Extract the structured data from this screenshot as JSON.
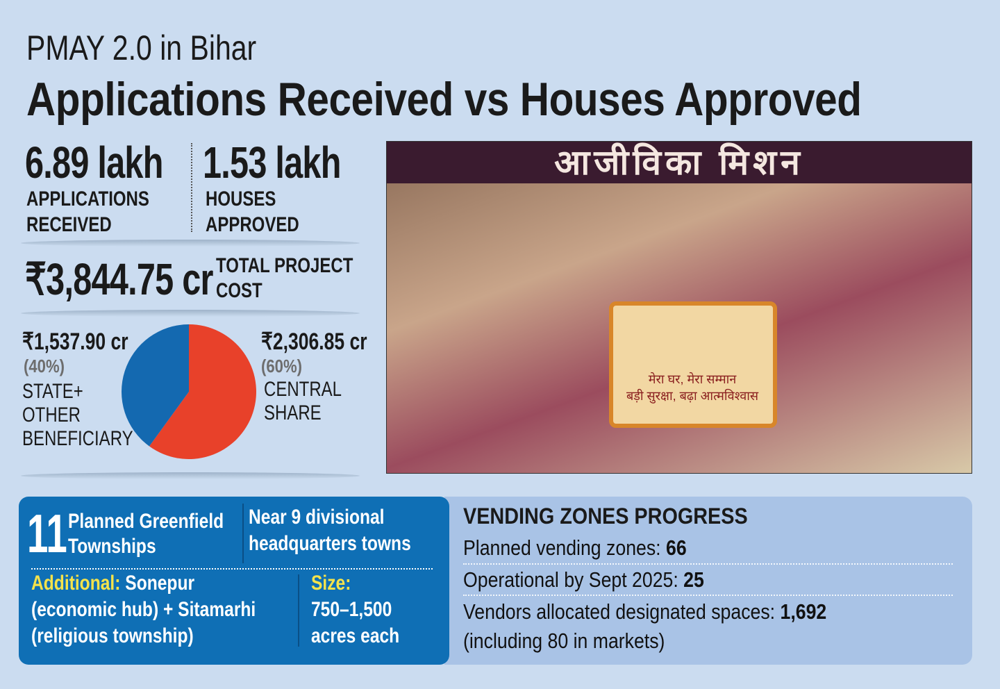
{
  "header": {
    "kicker": "PMAY 2.0 in  Bihar",
    "headline": "Applications Received vs Houses Approved"
  },
  "stats": {
    "applications_value": "6.89 lakh",
    "applications_label_1": "APPLICATIONS",
    "applications_label_2": "RECEIVED",
    "houses_value": "1.53 lakh",
    "houses_label_1": "HOUSES",
    "houses_label_2": "APPROVED",
    "cost_value": "₹3,844.75 cr",
    "cost_label_1": "TOTAL PROJECT",
    "cost_label_2": "COST"
  },
  "colors": {
    "state": "#1469b0",
    "central": "#e8412a",
    "background": "#cbdcf0",
    "box_blue": "#0f6fb5",
    "box_light": "#a9c3e6"
  },
  "chart_data": {
    "type": "pie",
    "title": "",
    "slices": [
      {
        "name": "STATE+\nOTHER\nBENEFICIARY",
        "value": 1537.9,
        "value_label": "₹1,537.90 cr",
        "percent_label": "(40%)",
        "color": "#1469b0"
      },
      {
        "name": "CENTRAL\nSHARE",
        "value": 2306.85,
        "value_label": "₹2,306.85 cr",
        "percent_label": "(60%)",
        "color": "#e8412a"
      }
    ]
  },
  "photo": {
    "banner_text": "आजीविका मिशन",
    "sign_line_1": "मेरा घर, मेरा सम्मान",
    "sign_line_2": "बड़ी सुरक्षा, बढ़ा आत्मविश्वास"
  },
  "townships": {
    "count": "11",
    "label_1": "Planned Greenfield",
    "label_2": "Townships",
    "near_1": "Near 9 divisional",
    "near_2": "headquarters towns",
    "additional_key": "Additional:",
    "additional_1": " Sonepur",
    "additional_2": "(economic hub) + Sitamarhi",
    "additional_3": "(religious township)",
    "size_key": "Size:",
    "size_1": "750–1,500",
    "size_2": "acres each"
  },
  "vending": {
    "title": "VENDING ZONES PROGRESS",
    "planned_label": "Planned vending zones: ",
    "planned_value": "66",
    "operational_label": "Operational by Sept 2025: ",
    "operational_value": "25",
    "vendors_label": "Vendors allocated designated spaces: ",
    "vendors_value": "1,692",
    "vendors_note": "(including 80 in markets)"
  }
}
